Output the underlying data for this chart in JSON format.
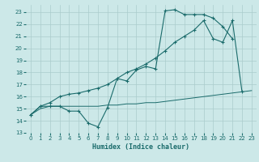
{
  "xlabel": "Humidex (Indice chaleur)",
  "bg_color": "#cce8e8",
  "grid_color": "#aacccc",
  "line_color": "#1a6b6b",
  "xlim": [
    -0.5,
    23.5
  ],
  "ylim": [
    13,
    23.6
  ],
  "yticks": [
    13,
    14,
    15,
    16,
    17,
    18,
    19,
    20,
    21,
    22,
    23
  ],
  "xticks": [
    0,
    1,
    2,
    3,
    4,
    5,
    6,
    7,
    8,
    9,
    10,
    11,
    12,
    13,
    14,
    15,
    16,
    17,
    18,
    19,
    20,
    21,
    22,
    23
  ],
  "line1_x": [
    0,
    1,
    2,
    3,
    4,
    5,
    6,
    7,
    8,
    9,
    10,
    11,
    12,
    13,
    14,
    15,
    16,
    17,
    18,
    19,
    20,
    21
  ],
  "line1_y": [
    14.5,
    15.2,
    15.2,
    15.2,
    14.8,
    14.8,
    13.8,
    13.5,
    15.1,
    17.5,
    17.3,
    18.2,
    18.5,
    18.3,
    23.1,
    23.2,
    22.8,
    22.8,
    22.8,
    22.5,
    21.8,
    20.8
  ],
  "line2_x": [
    0,
    1,
    2,
    3,
    4,
    5,
    6,
    7,
    8,
    9,
    10,
    11,
    12,
    13,
    14,
    15,
    16,
    17,
    18,
    19,
    20,
    21,
    22,
    23
  ],
  "line2_y": [
    14.5,
    15.2,
    15.5,
    16.0,
    16.2,
    16.3,
    16.5,
    16.7,
    17.0,
    17.5,
    18.0,
    18.3,
    18.7,
    19.2,
    19.8,
    20.5,
    21.0,
    21.5,
    22.3,
    20.8,
    20.5,
    22.3,
    16.4,
    null
  ],
  "line3_x": [
    0,
    1,
    2,
    3,
    4,
    5,
    6,
    7,
    8,
    9,
    10,
    11,
    12,
    13,
    14,
    15,
    16,
    17,
    18,
    19,
    20,
    21,
    22,
    23
  ],
  "line3_y": [
    14.5,
    15.0,
    15.2,
    15.2,
    15.2,
    15.2,
    15.2,
    15.2,
    15.3,
    15.3,
    15.4,
    15.4,
    15.5,
    15.5,
    15.6,
    15.7,
    15.8,
    15.9,
    16.0,
    16.1,
    16.2,
    16.3,
    16.4,
    16.5
  ]
}
